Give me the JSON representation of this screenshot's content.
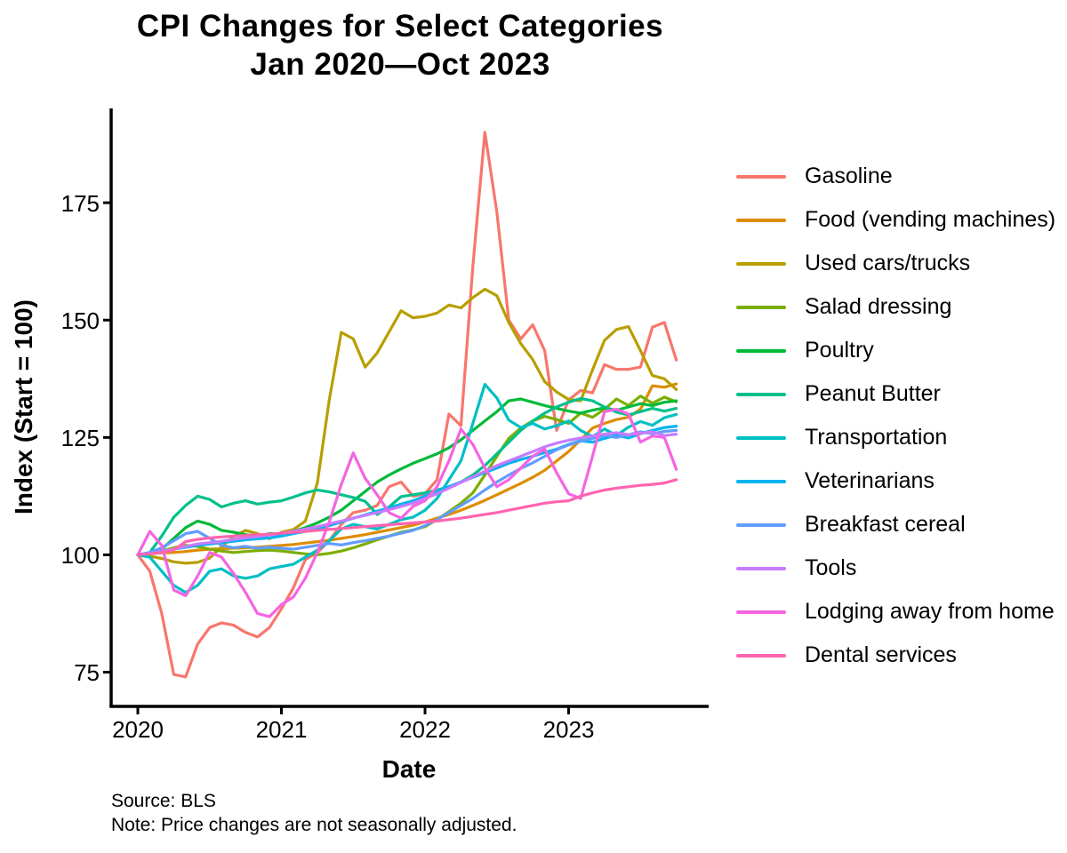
{
  "chart_data": {
    "type": "line",
    "title": "CPI Changes for Select Categories",
    "subtitle": "Jan 2020—Oct 2023",
    "xlabel": "Date",
    "ylabel": "Index (Start = 100)",
    "caption": [
      "Source: BLS",
      "Note: Price changes are not seasonally adjusted."
    ],
    "legend_position": "right",
    "grid": false,
    "background_color": "#FFFFFF",
    "axis_color": "#000000",
    "x_ticks": [
      {
        "label": "2020",
        "month_index": 0
      },
      {
        "label": "2021",
        "month_index": 12
      },
      {
        "label": "2022",
        "month_index": 24
      },
      {
        "label": "2023",
        "month_index": 36
      }
    ],
    "y_ticks": [
      75,
      100,
      125,
      150,
      175
    ],
    "ylim": [
      72,
      192
    ],
    "x_range_months": [
      "2020-01",
      "2023-10"
    ],
    "months": [
      "2020-01",
      "2020-02",
      "2020-03",
      "2020-04",
      "2020-05",
      "2020-06",
      "2020-07",
      "2020-08",
      "2020-09",
      "2020-10",
      "2020-11",
      "2020-12",
      "2021-01",
      "2021-02",
      "2021-03",
      "2021-04",
      "2021-05",
      "2021-06",
      "2021-07",
      "2021-08",
      "2021-09",
      "2021-10",
      "2021-11",
      "2021-12",
      "2022-01",
      "2022-02",
      "2022-03",
      "2022-04",
      "2022-05",
      "2022-06",
      "2022-07",
      "2022-08",
      "2022-09",
      "2022-10",
      "2022-11",
      "2022-12",
      "2023-01",
      "2023-02",
      "2023-03",
      "2023-04",
      "2023-05",
      "2023-06",
      "2023-07",
      "2023-08",
      "2023-09",
      "2023-10"
    ],
    "series": [
      {
        "name": "Gasoline",
        "color": "#F8766D",
        "values": [
          100,
          96.5,
          87.5,
          74.5,
          74,
          81,
          84.5,
          85.5,
          85,
          83.5,
          82.5,
          84.5,
          88.5,
          93,
          99,
          100.5,
          103,
          106.5,
          109,
          109.5,
          110.5,
          114.5,
          115.5,
          112.5,
          113,
          116,
          130,
          127.5,
          161.5,
          190,
          173,
          150,
          146,
          149,
          143.5,
          126.5,
          133,
          135,
          134.5,
          140.5,
          139.5,
          139.5,
          140,
          148.5,
          149.5,
          141.5
        ]
      },
      {
        "name": "Food (vending machines)",
        "color": "#DE8C00",
        "values": [
          100,
          100.2,
          100.4,
          100.5,
          100.7,
          101,
          101.2,
          101.3,
          101.4,
          101.5,
          101.6,
          101.8,
          102,
          102.2,
          102.5,
          102.8,
          103.1,
          103.5,
          103.9,
          104.3,
          104.8,
          105.3,
          105.8,
          106.3,
          107,
          107.8,
          108.6,
          109.5,
          110.5,
          111.6,
          112.8,
          114,
          115.2,
          116.5,
          118,
          120,
          122,
          124.5,
          127,
          128,
          128.8,
          129.3,
          131,
          136,
          135.7,
          136.4
        ]
      },
      {
        "name": "Used cars/trucks",
        "color": "#B79F00",
        "values": [
          100,
          99.7,
          99.2,
          98.5,
          98.2,
          98.4,
          99.3,
          101.7,
          103.9,
          105.2,
          104.5,
          103.4,
          104.8,
          105.4,
          107.2,
          115.3,
          133,
          147.4,
          146,
          140,
          143,
          147.5,
          152,
          150.5,
          150.8,
          151.5,
          153.2,
          152.6,
          154.8,
          156.6,
          155.2,
          149.5,
          145,
          141.6,
          136.9,
          134.7,
          133.1,
          132.8,
          139.4,
          145.7,
          148,
          148.6,
          143.5,
          138.2,
          137.5,
          135.2
        ]
      },
      {
        "name": "Salad dressing",
        "color": "#7CAE00",
        "values": [
          100,
          100.3,
          100.8,
          101.5,
          102,
          101.8,
          101.2,
          100.8,
          100.5,
          100.7,
          100.9,
          101,
          100.8,
          100.5,
          100.2,
          100,
          100.3,
          100.8,
          101.5,
          102.3,
          103.2,
          104,
          104.8,
          105.3,
          106,
          107.5,
          109.2,
          111,
          113.2,
          117,
          121,
          124.8,
          127,
          128.5,
          129.5,
          128.8,
          128,
          130.2,
          129.3,
          131,
          133.2,
          131.8,
          133.8,
          132.3,
          133.6,
          132.6
        ]
      },
      {
        "name": "Poultry",
        "color": "#00BA38",
        "values": [
          100,
          100.4,
          101.2,
          103.5,
          105.8,
          107.2,
          106.5,
          105.2,
          104.8,
          104.3,
          104,
          104.5,
          104.5,
          105,
          105.8,
          106.8,
          108,
          109.5,
          111.5,
          113.5,
          115.5,
          117,
          118.3,
          119.5,
          120.5,
          121.5,
          122.8,
          124.5,
          126.5,
          128.5,
          130.5,
          132.8,
          133.2,
          132.5,
          131.8,
          131.2,
          130.6,
          130.2,
          130.8,
          131.3,
          130.8,
          131.5,
          132.2,
          131.8,
          132.5,
          132.8
        ]
      },
      {
        "name": "Peanut Butter",
        "color": "#00C08B",
        "values": [
          100,
          100.5,
          104,
          108,
          110.5,
          112.5,
          111.8,
          110.2,
          111,
          111.5,
          110.8,
          111.2,
          111.5,
          112.3,
          113.2,
          113.8,
          113.4,
          112.8,
          112.2,
          111.4,
          108.6,
          110.2,
          112.4,
          112.8,
          113.2,
          113.8,
          114.5,
          115.5,
          117,
          119,
          121.5,
          124,
          126.5,
          128.5,
          130.2,
          131.5,
          132.5,
          133.3,
          132.8,
          131.5,
          130.4,
          129.8,
          130.5,
          131.2,
          130.6,
          131.2
        ]
      },
      {
        "name": "Transportation",
        "color": "#00BFC4",
        "values": [
          100,
          99.5,
          96.5,
          93.5,
          92,
          93.5,
          96.5,
          97,
          95.5,
          95,
          95.5,
          97,
          97.5,
          98,
          99.5,
          101,
          103,
          105.5,
          106.5,
          106,
          105.5,
          106.5,
          107.5,
          108,
          109.5,
          112,
          116,
          120,
          128,
          136.3,
          133.4,
          128.7,
          127.1,
          128,
          126.8,
          127.5,
          128.5,
          126.5,
          125.2,
          126.8,
          125.4,
          127.2,
          128.4,
          127.6,
          129.2,
          129.9
        ]
      },
      {
        "name": "Veterinarians",
        "color": "#00B4F0",
        "values": [
          100,
          100.3,
          100.8,
          101.2,
          101.6,
          102,
          102.3,
          102.6,
          102.9,
          103.2,
          103.4,
          103.6,
          104,
          104.5,
          105,
          105.5,
          106.2,
          107,
          107.8,
          108.5,
          109.3,
          110,
          110.8,
          111.5,
          112.5,
          113.5,
          114.5,
          115.5,
          116.5,
          117.5,
          118.5,
          119.5,
          120.3,
          121,
          121.8,
          122.5,
          123.5,
          124.3,
          124,
          124.8,
          125.5,
          124.9,
          125.8,
          126.5,
          127.1,
          127.4
        ]
      },
      {
        "name": "Breakfast cereal",
        "color": "#619CFF",
        "values": [
          100,
          100.5,
          101.5,
          103,
          104.5,
          105,
          103.5,
          102,
          101.5,
          101.8,
          101.4,
          101.6,
          101.4,
          101.2,
          101.6,
          102,
          102.4,
          102.1,
          102.6,
          103,
          103.5,
          104,
          104.6,
          105.2,
          106.2,
          107.5,
          109,
          110.5,
          112,
          113.8,
          115.5,
          117,
          118.4,
          119.6,
          121,
          122.4,
          123.4,
          124.2,
          124.8,
          125.4,
          125,
          125.6,
          126.2,
          125.8,
          126.3,
          126.5
        ]
      },
      {
        "name": "Tools",
        "color": "#C77CFF",
        "values": [
          100,
          100.3,
          100.7,
          101.2,
          101.8,
          102.3,
          102.6,
          102.9,
          103.3,
          103.6,
          103.9,
          104.2,
          104.6,
          105,
          105.5,
          106,
          106.6,
          107.2,
          107.8,
          108.4,
          109,
          109.6,
          110.3,
          111,
          112,
          113,
          114.2,
          115.4,
          116.6,
          117.8,
          119,
          120,
          121,
          122,
          123,
          123.8,
          124.4,
          124.9,
          125.3,
          125.7,
          126,
          125.6,
          125.9,
          126.2,
          125.4,
          125.7
        ]
      },
      {
        "name": "Lodging away from home",
        "color": "#F564E3",
        "values": [
          100,
          105,
          102,
          92.5,
          91.3,
          95.5,
          100.5,
          99.5,
          96,
          92,
          87.5,
          86.8,
          89.4,
          91,
          95,
          100.5,
          107,
          115,
          121.7,
          116.3,
          112.8,
          109,
          107.8,
          110.3,
          111.5,
          114.5,
          120,
          126.8,
          123.5,
          118.5,
          114.5,
          116,
          118.5,
          121,
          122.5,
          117.5,
          113,
          112,
          121,
          130.5,
          131,
          130,
          124,
          125.3,
          125,
          118.2
        ]
      },
      {
        "name": "Dental services",
        "color": "#FF64B0",
        "values": [
          100,
          100.2,
          100.5,
          101,
          102.8,
          103.3,
          103.6,
          103.8,
          104,
          104.1,
          104.3,
          104.4,
          104.6,
          104.8,
          105,
          105.2,
          105.4,
          105.6,
          105.8,
          106,
          106.2,
          106.4,
          106.6,
          106.8,
          107,
          107.2,
          107.5,
          107.8,
          108.2,
          108.6,
          109,
          109.5,
          110,
          110.5,
          111,
          111.3,
          111.5,
          112.5,
          113.2,
          113.8,
          114.2,
          114.5,
          114.8,
          115,
          115.3,
          116
        ]
      }
    ]
  }
}
